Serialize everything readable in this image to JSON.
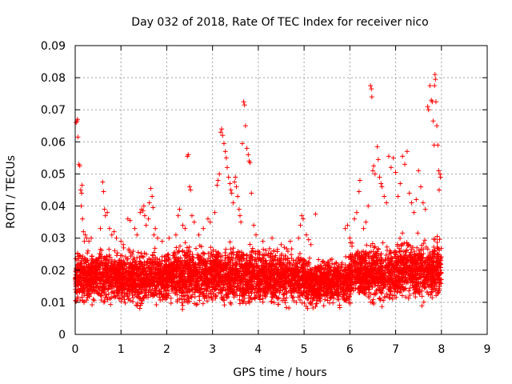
{
  "chart_data": {
    "type": "scatter",
    "title": "Day 032 of 2018, Rate Of TEC Index for receiver nico",
    "xlabel": "GPS time / hours",
    "ylabel": "ROTI / TECUs",
    "xlim": [
      0,
      9
    ],
    "ylim": [
      0,
      0.09
    ],
    "xticks": [
      0,
      1,
      2,
      3,
      4,
      5,
      6,
      7,
      8,
      9
    ],
    "yticks": [
      0,
      0.01,
      0.02,
      0.03,
      0.04,
      0.05,
      0.06,
      0.07,
      0.08,
      0.09
    ],
    "ytick_labels": [
      "0",
      "0.01",
      "0.02",
      "0.03",
      "0.04",
      "0.05",
      "0.06",
      "0.07",
      "0.08",
      "0.09"
    ],
    "grid": true,
    "marker": "+",
    "color": "#ff0000",
    "series": [
      {
        "name": "ROTI",
        "points": [
          [
            0.02,
            0.066
          ],
          [
            0.04,
            0.0665
          ],
          [
            0.05,
            0.067
          ],
          [
            0.06,
            0.0615
          ],
          [
            0.08,
            0.053
          ],
          [
            0.1,
            0.0525
          ],
          [
            0.12,
            0.045
          ],
          [
            0.14,
            0.044
          ],
          [
            0.15,
            0.0465
          ],
          [
            0.13,
            0.04
          ],
          [
            0.16,
            0.036
          ],
          [
            0.18,
            0.032
          ],
          [
            0.2,
            0.029
          ],
          [
            0.22,
            0.031
          ],
          [
            0.25,
            0.03
          ],
          [
            0.3,
            0.029
          ],
          [
            0.35,
            0.03
          ],
          [
            0.55,
            0.033
          ],
          [
            0.6,
            0.0475
          ],
          [
            0.62,
            0.0445
          ],
          [
            0.64,
            0.039
          ],
          [
            0.66,
            0.037
          ],
          [
            0.7,
            0.038
          ],
          [
            0.75,
            0.033
          ],
          [
            0.8,
            0.031
          ],
          [
            0.85,
            0.032
          ],
          [
            0.9,
            0.03
          ],
          [
            1.0,
            0.029
          ],
          [
            1.05,
            0.028
          ],
          [
            1.15,
            0.036
          ],
          [
            1.2,
            0.0355
          ],
          [
            1.3,
            0.033
          ],
          [
            1.35,
            0.031
          ],
          [
            1.42,
            0.038
          ],
          [
            1.45,
            0.039
          ],
          [
            1.48,
            0.0385
          ],
          [
            1.5,
            0.04
          ],
          [
            1.52,
            0.037
          ],
          [
            1.55,
            0.034
          ],
          [
            1.6,
            0.036
          ],
          [
            1.62,
            0.041
          ],
          [
            1.65,
            0.0455
          ],
          [
            1.68,
            0.043
          ],
          [
            1.7,
            0.0395
          ],
          [
            1.72,
            0.031
          ],
          [
            1.75,
            0.033
          ],
          [
            1.8,
            0.03
          ],
          [
            1.9,
            0.029
          ],
          [
            2.05,
            0.03
          ],
          [
            2.2,
            0.031
          ],
          [
            2.25,
            0.037
          ],
          [
            2.28,
            0.039
          ],
          [
            2.35,
            0.034
          ],
          [
            2.4,
            0.033
          ],
          [
            2.45,
            0.0555
          ],
          [
            2.47,
            0.056
          ],
          [
            2.5,
            0.046
          ],
          [
            2.52,
            0.045
          ],
          [
            2.55,
            0.037
          ],
          [
            2.6,
            0.035
          ],
          [
            2.7,
            0.031
          ],
          [
            2.8,
            0.033
          ],
          [
            2.9,
            0.036
          ],
          [
            2.95,
            0.035
          ],
          [
            3.05,
            0.038
          ],
          [
            3.1,
            0.0465
          ],
          [
            3.12,
            0.048
          ],
          [
            3.15,
            0.05
          ],
          [
            3.18,
            0.063
          ],
          [
            3.2,
            0.064
          ],
          [
            3.22,
            0.062
          ],
          [
            3.25,
            0.0595
          ],
          [
            3.28,
            0.057
          ],
          [
            3.3,
            0.055
          ],
          [
            3.32,
            0.052
          ],
          [
            3.35,
            0.049
          ],
          [
            3.38,
            0.047
          ],
          [
            3.4,
            0.045
          ],
          [
            3.42,
            0.044
          ],
          [
            3.45,
            0.041
          ],
          [
            3.48,
            0.0475
          ],
          [
            3.5,
            0.049
          ],
          [
            3.52,
            0.046
          ],
          [
            3.55,
            0.043
          ],
          [
            3.58,
            0.039
          ],
          [
            3.6,
            0.037
          ],
          [
            3.62,
            0.035
          ],
          [
            3.65,
            0.0595
          ],
          [
            3.68,
            0.0725
          ],
          [
            3.7,
            0.0715
          ],
          [
            3.72,
            0.065
          ],
          [
            3.75,
            0.058
          ],
          [
            3.78,
            0.056
          ],
          [
            3.8,
            0.054
          ],
          [
            3.82,
            0.0535
          ],
          [
            3.85,
            0.044
          ],
          [
            3.9,
            0.034
          ],
          [
            3.95,
            0.031
          ],
          [
            4.1,
            0.029
          ],
          [
            4.3,
            0.03
          ],
          [
            4.5,
            0.028
          ],
          [
            4.7,
            0.029
          ],
          [
            4.88,
            0.03
          ],
          [
            4.92,
            0.034
          ],
          [
            4.95,
            0.037
          ],
          [
            4.98,
            0.036
          ],
          [
            5.05,
            0.031
          ],
          [
            5.1,
            0.0295
          ],
          [
            5.15,
            0.028
          ],
          [
            5.25,
            0.0375
          ],
          [
            5.9,
            0.033
          ],
          [
            5.95,
            0.034
          ],
          [
            6.0,
            0.03
          ],
          [
            6.1,
            0.036
          ],
          [
            6.15,
            0.038
          ],
          [
            6.2,
            0.0445
          ],
          [
            6.22,
            0.048
          ],
          [
            6.3,
            0.033
          ],
          [
            6.35,
            0.035
          ],
          [
            6.4,
            0.04
          ],
          [
            6.45,
            0.0775
          ],
          [
            6.47,
            0.0765
          ],
          [
            6.48,
            0.074
          ],
          [
            6.5,
            0.051
          ],
          [
            6.52,
            0.0525
          ],
          [
            6.55,
            0.05
          ],
          [
            6.6,
            0.0585
          ],
          [
            6.62,
            0.0545
          ],
          [
            6.65,
            0.049
          ],
          [
            6.68,
            0.047
          ],
          [
            6.7,
            0.046
          ],
          [
            6.75,
            0.043
          ],
          [
            6.8,
            0.041
          ],
          [
            6.85,
            0.0555
          ],
          [
            6.9,
            0.052
          ],
          [
            6.95,
            0.055
          ],
          [
            7.0,
            0.0505
          ],
          [
            7.05,
            0.043
          ],
          [
            7.1,
            0.047
          ],
          [
            7.15,
            0.0555
          ],
          [
            7.2,
            0.053
          ],
          [
            7.25,
            0.057
          ],
          [
            7.3,
            0.044
          ],
          [
            7.35,
            0.041
          ],
          [
            7.4,
            0.038
          ],
          [
            7.45,
            0.042
          ],
          [
            7.5,
            0.051
          ],
          [
            7.55,
            0.046
          ],
          [
            7.6,
            0.041
          ],
          [
            7.65,
            0.039
          ],
          [
            7.7,
            0.071
          ],
          [
            7.72,
            0.07
          ],
          [
            7.75,
            0.0775
          ],
          [
            7.78,
            0.073
          ],
          [
            7.8,
            0.0725
          ],
          [
            7.82,
            0.0665
          ],
          [
            7.84,
            0.059
          ],
          [
            7.85,
            0.0775
          ],
          [
            7.86,
            0.081
          ],
          [
            7.87,
            0.0795
          ],
          [
            7.88,
            0.0725
          ],
          [
            7.9,
            0.065
          ],
          [
            7.92,
            0.059
          ],
          [
            7.94,
            0.051
          ],
          [
            7.95,
            0.045
          ],
          [
            7.97,
            0.05
          ],
          [
            7.98,
            0.049
          ]
        ],
        "bands": [
          {
            "x": [
              0.0,
              1.0
            ],
            "y": [
              0.008,
              0.028
            ]
          },
          {
            "x": [
              1.0,
              2.0
            ],
            "y": [
              0.007,
              0.028
            ]
          },
          {
            "x": [
              2.0,
              3.0
            ],
            "y": [
              0.007,
              0.03
            ]
          },
          {
            "x": [
              3.0,
              4.0
            ],
            "y": [
              0.007,
              0.03
            ]
          },
          {
            "x": [
              4.0,
              5.0
            ],
            "y": [
              0.007,
              0.029
            ]
          },
          {
            "x": [
              5.0,
              5.35
            ],
            "y": [
              0.006,
              0.025
            ]
          },
          {
            "x": [
              5.35,
              6.0
            ],
            "y": [
              0.007,
              0.026
            ]
          },
          {
            "x": [
              6.0,
              7.0
            ],
            "y": [
              0.008,
              0.03
            ]
          },
          {
            "x": [
              7.0,
              8.0
            ],
            "y": [
              0.008,
              0.032
            ]
          }
        ]
      }
    ]
  }
}
